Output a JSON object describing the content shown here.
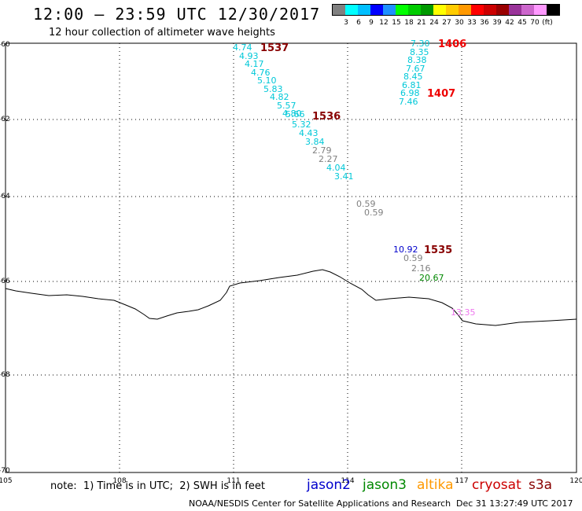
{
  "header": {
    "title": "12:00 – 23:59 UTC 12/30/2017",
    "subtitle": "12 hour collection of altimeter wave heights"
  },
  "legend": {
    "unit": "(ft)",
    "colors": [
      "#808080",
      "#00ffff",
      "#00bfff",
      "#0000ff",
      "#1e90ff",
      "#00ff00",
      "#00cc00",
      "#009900",
      "#ffff00",
      "#ffcc00",
      "#ff9900",
      "#ff0000",
      "#cc0000",
      "#990000",
      "#993399",
      "#cc66cc",
      "#ff99ff",
      "#000000"
    ],
    "labels": [
      "3",
      "6",
      "9",
      "12",
      "15",
      "18",
      "21",
      "24",
      "27",
      "30",
      "33",
      "36",
      "39",
      "42",
      "45",
      "70"
    ]
  },
  "axes": {
    "lat_labels": [
      "-60",
      "-62",
      "-64",
      "-66",
      "-68",
      "-70"
    ],
    "lon_labels": [
      "105",
      "108",
      "111",
      "114",
      "117",
      "120"
    ]
  },
  "points": [
    {
      "t": "4.74",
      "c": "#00c8d8"
    },
    {
      "t": "4.93",
      "c": "#00c8d8"
    },
    {
      "t": "4.17",
      "c": "#00c8d8"
    },
    {
      "t": "4.76",
      "c": "#00c8d8"
    },
    {
      "t": "5.10",
      "c": "#00c8d8"
    },
    {
      "t": "5.83",
      "c": "#00c8d8"
    },
    {
      "t": "4.82",
      "c": "#00c8d8"
    },
    {
      "t": "5.57",
      "c": "#00c8d8"
    },
    {
      "t": "4.80",
      "c": "#00c8d8"
    },
    {
      "t": "5.66",
      "c": "#00c8d8"
    },
    {
      "t": "5.32",
      "c": "#00c8d8"
    },
    {
      "t": "4.43",
      "c": "#00c8d8"
    },
    {
      "t": "3.84",
      "c": "#00c8d8"
    },
    {
      "t": "2.79",
      "c": "#808080"
    },
    {
      "t": "2.27",
      "c": "#808080"
    },
    {
      "t": "4.04",
      "c": "#00c8d8"
    },
    {
      "t": "3.41",
      "c": "#00c8d8"
    },
    {
      "t": "0.59",
      "c": "#808080"
    },
    {
      "t": "0.59",
      "c": "#808080"
    },
    {
      "t": "7.30",
      "c": "#00c8d8"
    },
    {
      "t": "8.35",
      "c": "#00c8d8"
    },
    {
      "t": "8.38",
      "c": "#00c8d8"
    },
    {
      "t": "7.67",
      "c": "#00c8d8"
    },
    {
      "t": "8.45",
      "c": "#00c8d8"
    },
    {
      "t": "6.81",
      "c": "#00c8d8"
    },
    {
      "t": "6.98",
      "c": "#00c8d8"
    },
    {
      "t": "7.46",
      "c": "#00c8d8"
    },
    {
      "t": "10.92",
      "c": "#0000cc"
    },
    {
      "t": "0.59",
      "c": "#808080"
    },
    {
      "t": "2.16",
      "c": "#808080"
    },
    {
      "t": "20.67",
      "c": "#008800"
    },
    {
      "t": "13.35",
      "c": "#ee77ee"
    }
  ],
  "pass_labels": [
    {
      "t": "1537",
      "c": "#880000"
    },
    {
      "t": "1536",
      "c": "#880000"
    },
    {
      "t": "1406",
      "c": "#ee0000"
    },
    {
      "t": "1407",
      "c": "#ee0000"
    },
    {
      "t": "1535",
      "c": "#880000"
    }
  ],
  "note": "note:  1) Time is in UTC;  2) SWH is in feet",
  "satellites": [
    {
      "name": "jason2",
      "color": "#0000cc"
    },
    {
      "name": "jason3",
      "color": "#008800"
    },
    {
      "name": "altika",
      "color": "#ff9900"
    },
    {
      "name": "cryosat",
      "color": "#cc0000"
    },
    {
      "name": "s3a",
      "color": "#880000"
    }
  ],
  "footer": {
    "credit": "NOAA/NESDIS Center for Satellite Applications and Research",
    "timestamp": "Dec 31 13:27:49 UTC 2017"
  }
}
